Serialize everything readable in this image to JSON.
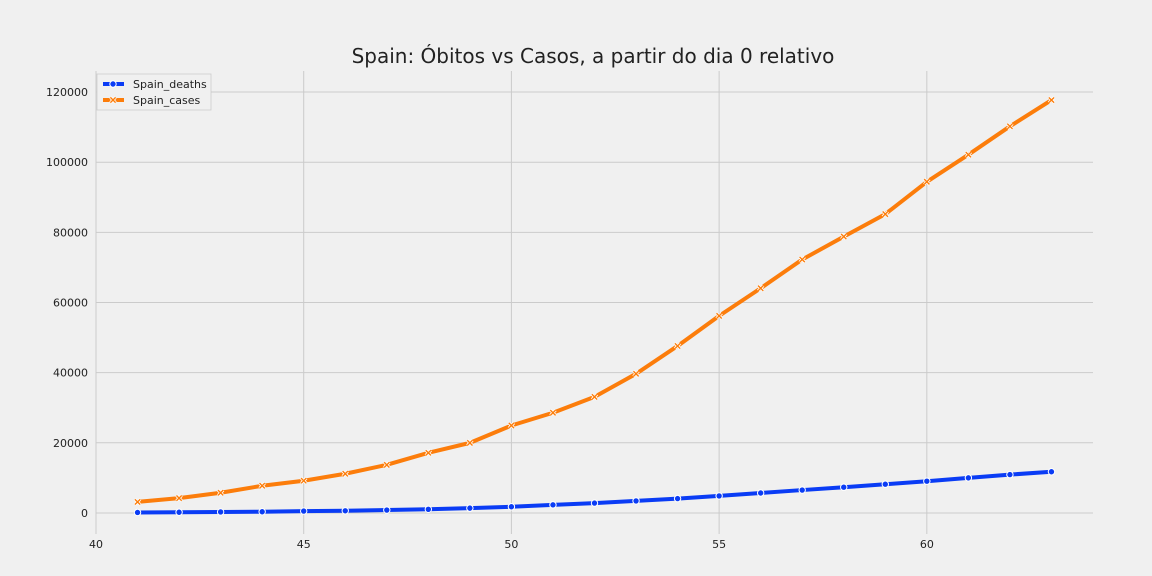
{
  "chart_data": {
    "type": "line",
    "title": "Spain: Óbitos vs Casos, a partir do dia 0 relativo",
    "xlabel": "",
    "ylabel": "",
    "xlim": [
      40,
      64
    ],
    "ylim": [
      -6000,
      126000
    ],
    "x_ticks": [
      40,
      45,
      50,
      55,
      60
    ],
    "y_ticks": [
      0,
      20000,
      40000,
      60000,
      80000,
      100000,
      120000
    ],
    "grid": true,
    "legend": "top-left",
    "x": [
      41,
      42,
      43,
      44,
      45,
      46,
      47,
      48,
      49,
      50,
      51,
      52,
      53,
      54,
      55,
      56,
      57,
      58,
      59,
      60,
      61,
      62,
      63
    ],
    "series": [
      {
        "name": "Spain_deaths",
        "color": "#0a3cf5",
        "marker": "circle",
        "values": [
          136,
          200,
          289,
          342,
          533,
          623,
          830,
          1043,
          1375,
          1772,
          2311,
          2808,
          3434,
          4089,
          4858,
          5690,
          6528,
          7340,
          8189,
          9053,
          10003,
          10935,
          11744
        ]
      },
      {
        "name": "Spain_cases",
        "color": "#fc7d0b",
        "marker": "x",
        "values": [
          3146,
          4231,
          5753,
          7753,
          9191,
          11178,
          13716,
          17147,
          19980,
          24926,
          28572,
          33089,
          39673,
          47610,
          56188,
          64059,
          72248,
          78797,
          85195,
          94417,
          102136,
          110238,
          117710
        ]
      }
    ]
  }
}
